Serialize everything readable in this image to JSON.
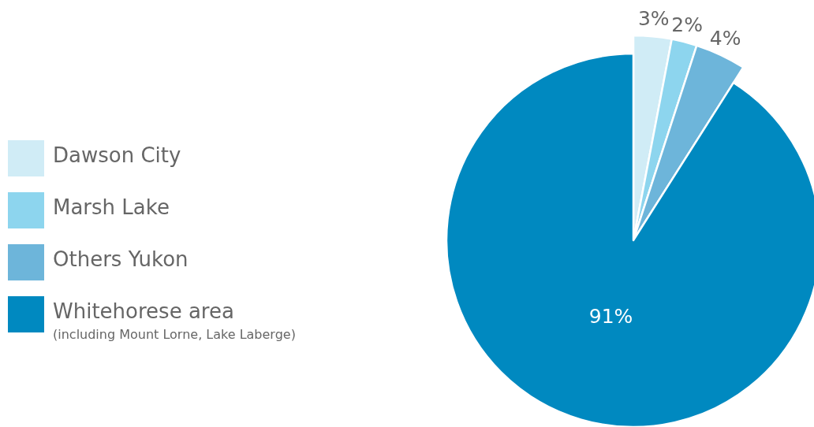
{
  "chart_data": {
    "type": "pie",
    "categories": [
      "Dawson City",
      "Marsh Lake",
      "Others Yukon",
      "Whitehorese area\n(including Mount Lorne, Lake Laberge)"
    ],
    "values": [
      3,
      2,
      4,
      91
    ],
    "colors": [
      "#d0ecf6",
      "#8dd5ee",
      "#6db5da",
      "#0089c0"
    ],
    "value_labels": [
      "3%",
      "2%",
      "4%",
      "91%"
    ],
    "legend": "left"
  }
}
